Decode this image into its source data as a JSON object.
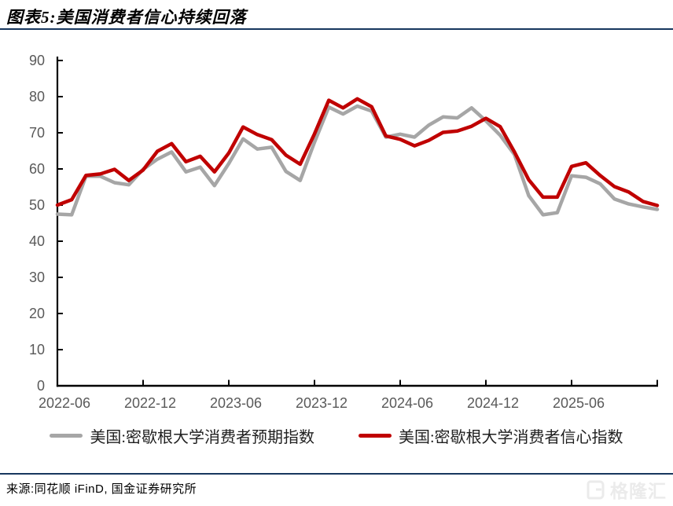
{
  "header": {
    "title": "图表5:美国消费者信心持续回落",
    "rule_color": "#17375E"
  },
  "chart_data": {
    "type": "line",
    "x": [
      "2022-06",
      "2022-07",
      "2022-08",
      "2022-09",
      "2022-10",
      "2022-11",
      "2022-12",
      "2023-01",
      "2023-02",
      "2023-03",
      "2023-04",
      "2023-05",
      "2023-06",
      "2023-07",
      "2023-08",
      "2023-09",
      "2023-10",
      "2023-11",
      "2023-12",
      "2024-01",
      "2024-02",
      "2024-03",
      "2024-04",
      "2024-05",
      "2024-06",
      "2024-07",
      "2024-08",
      "2024-09",
      "2024-10",
      "2024-11",
      "2024-12",
      "2025-01",
      "2025-02",
      "2025-03",
      "2025-04",
      "2025-05",
      "2025-06",
      "2025-07",
      "2025-08",
      "2025-09",
      "2025-10",
      "2025-11",
      "2025-12"
    ],
    "series": [
      {
        "name": "美国:密歇根大学消费者预期指数",
        "color": "#A6A6A6",
        "values": [
          47.5,
          47.3,
          58.0,
          58.0,
          56.2,
          55.6,
          59.9,
          62.7,
          64.7,
          59.2,
          60.5,
          55.4,
          61.5,
          68.3,
          65.5,
          66.0,
          59.3,
          56.8,
          67.4,
          77.1,
          75.2,
          77.4,
          76.0,
          68.8,
          69.6,
          68.8,
          72.1,
          74.4,
          74.1,
          76.9,
          73.3,
          69.3,
          64.0,
          52.6,
          47.3,
          47.9,
          58.1,
          57.7,
          55.9,
          51.7,
          50.3,
          49.5,
          48.8
        ]
      },
      {
        "name": "美国:密歇根大学消费者信心指数",
        "color": "#C00000",
        "values": [
          50.0,
          51.5,
          58.2,
          58.6,
          59.9,
          56.8,
          59.7,
          64.9,
          67.0,
          62.0,
          63.5,
          59.2,
          64.4,
          71.6,
          69.5,
          68.1,
          63.8,
          61.3,
          69.7,
          79.0,
          76.9,
          79.4,
          77.2,
          69.1,
          68.2,
          66.4,
          67.9,
          70.1,
          70.5,
          71.8,
          74.0,
          71.7,
          64.7,
          57.0,
          52.2,
          52.2,
          60.7,
          61.7,
          58.2,
          55.1,
          53.6,
          51.0,
          49.9
        ]
      }
    ],
    "title": "",
    "xlabel": "",
    "ylabel": "",
    "ylim": [
      0,
      90
    ],
    "ytick_step": 10,
    "xtick_every": 6,
    "xtick_labels": [
      "2022-06",
      "2022-12",
      "2023-06",
      "2023-12",
      "2024-06",
      "2024-12",
      "2025-06"
    ],
    "grid": false,
    "legend_position": "bottom",
    "axis_color": "#000000",
    "tick_label_color": "#595959"
  },
  "footer": {
    "source": "来源:同花顺 iFinD, 国金证券研究所",
    "rule_color": "#17375E"
  },
  "watermark": {
    "text": "格隆汇"
  }
}
